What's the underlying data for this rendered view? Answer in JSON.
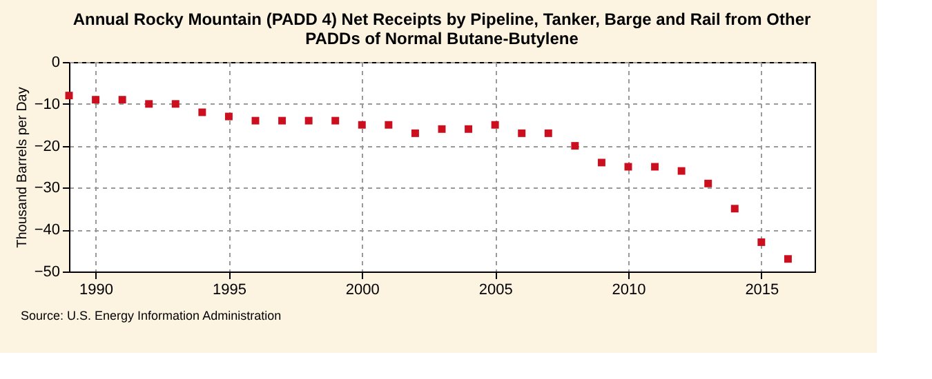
{
  "chart_data": {
    "type": "scatter",
    "title": [
      "Annual Rocky Mountain (PADD 4) Net Receipts by Pipeline, Tanker, Barge and Rail from Other",
      "PADDs of Normal Butane-Butylene"
    ],
    "ylabel": "Thousand Barrels per Day",
    "x": [
      1989,
      1990,
      1991,
      1992,
      1993,
      1994,
      1995,
      1996,
      1997,
      1998,
      1999,
      2000,
      2001,
      2002,
      2003,
      2004,
      2005,
      2006,
      2007,
      2008,
      2009,
      2010,
      2011,
      2012,
      2013,
      2014,
      2015,
      2016
    ],
    "series": [
      {
        "color": "#cc0f1f",
        "values": [
          -8,
          -9,
          -9,
          -10,
          -10,
          -12,
          -13,
          -14,
          -14,
          -14,
          -14,
          -15,
          -15,
          -17,
          -16,
          -16,
          -15,
          -17,
          -17,
          -20,
          -24,
          -25,
          -25,
          -26,
          -29,
          -35,
          -43,
          -47
        ]
      }
    ],
    "xlim": [
      1989,
      2017
    ],
    "xticks": [
      1990,
      1995,
      2000,
      2005,
      2010,
      2015
    ],
    "ylim": [
      -50,
      0
    ],
    "yticks": [
      -50,
      -40,
      -30,
      -20,
      -10,
      0
    ],
    "grid": true,
    "marker": "square",
    "legend": false,
    "annotations": [
      "Source: U.S. Energy Information Administration"
    ]
  }
}
